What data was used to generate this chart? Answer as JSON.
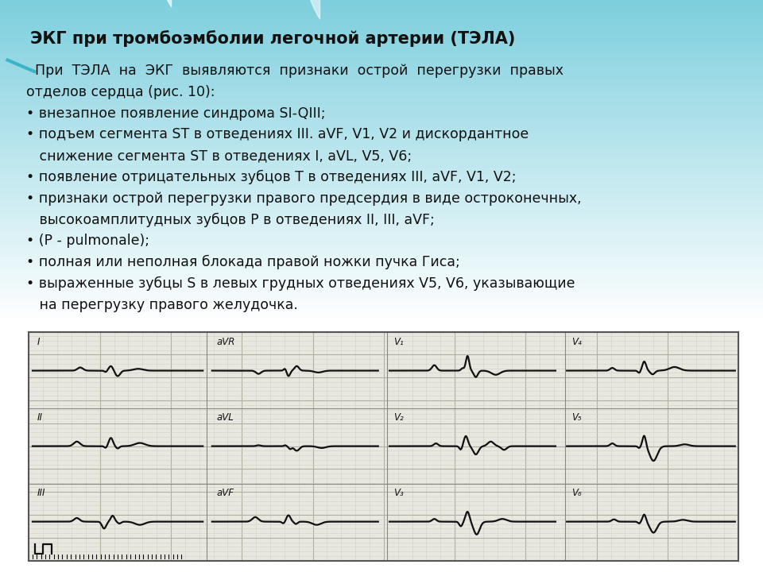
{
  "title": "ЭКГ при тромбоэмболии легочной артерии (ТЭЛА)",
  "text_color": "#111111",
  "title_fontsize": 15,
  "body_fontsize": 12.5,
  "ecg_bg_color": "#e8e8e0",
  "ecg_grid_major_color": "#b0b0a0",
  "ecg_grid_minor_color": "#d0d0c0",
  "ecg_line_color": "#111111",
  "ecg_border_color": "#555555",
  "bg_teal": "#7dcfde",
  "bg_white": "#ffffff",
  "body_lines": [
    "  При  ТЭЛА  на  ЭКГ  выявляются  признаки  острой  перегрузки  правых",
    "отделов сердца (рис. 10):",
    "• внезапное появление синдрома SI-QIII;",
    "• подъем сегмента ST в отведениях III. aVF, V1, V2 и дискордантное",
    "   снижение сегмента ST в отведениях I, aVL, V5, V6;",
    "• появление отрицательных зубцов Т в отведениях III, aVF, V1, V2;",
    "• признаки острой перегрузки правого предсердия в виде остроконечных,",
    "   высокоамплитудных зубцов Р в отведениях II, III, aVF;",
    "• (Р - pulmonale);",
    "• полная или неполная блокада правой ножки пучка Гиса;",
    "• выраженные зубцы S в левых грудных отведениях V5, V6, указывающие",
    "   на перегрузку правого желудочка."
  ]
}
